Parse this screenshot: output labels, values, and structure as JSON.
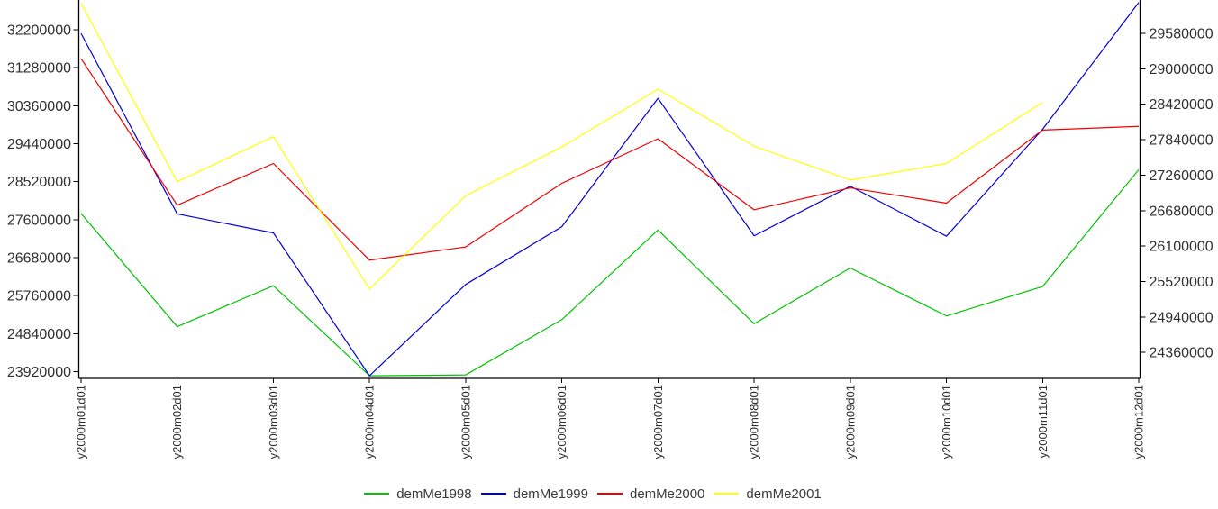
{
  "chart_data": {
    "type": "line",
    "title": "",
    "xlabel": "",
    "ylabel": "",
    "grid": false,
    "legend_position": "bottom",
    "x_labels": [
      "y2000m01d01",
      "y2000m02d01",
      "y2000m03d01",
      "y2000m04d01",
      "y2000m05d01",
      "y2000m06d01",
      "y2000m07d01",
      "y2000m08d01",
      "y2000m09d01",
      "y2000m10d01",
      "y2000m11d01",
      "y2000m12d01"
    ],
    "series": [
      {
        "name": "demMe1998",
        "color": "#00C400",
        "values": [
          27750000,
          25010000,
          26000000,
          23820000,
          23840000,
          25180000,
          27350000,
          25080000,
          26430000,
          25270000,
          25980000,
          28810000
        ]
      },
      {
        "name": "demMe1999",
        "color": "#0000D8",
        "values": [
          32110000,
          27740000,
          27280000,
          23820000,
          26030000,
          27430000,
          30540000,
          27210000,
          28410000,
          27200000,
          29790000,
          32860000
        ]
      },
      {
        "name": "demMe2000",
        "color": "#EE0000",
        "values": [
          31500000,
          27950000,
          28960000,
          26620000,
          26940000,
          28480000,
          29560000,
          27840000,
          28370000,
          28000000,
          29770000,
          29860000
        ]
      },
      {
        "name": "demMe2001",
        "color": "#FFFF00",
        "values": [
          32840000,
          28520000,
          29610000,
          25920000,
          28180000,
          29360000,
          30760000,
          29380000,
          28560000,
          28960000,
          30440000,
          null
        ]
      }
    ],
    "left_axis": {
      "ticks": [
        32200000,
        31280000,
        30360000,
        29440000,
        28520000,
        27600000,
        26680000,
        25760000,
        24840000,
        23920000
      ]
    },
    "right_axis": {
      "ticks": [
        29580000,
        29000000,
        28420000,
        27840000,
        27260000,
        26680000,
        26100000,
        25520000,
        24940000,
        24360000
      ]
    },
    "legend_entries": [
      "demMe1998",
      "demMe1999",
      "demMe2000",
      "demMe2001"
    ]
  }
}
